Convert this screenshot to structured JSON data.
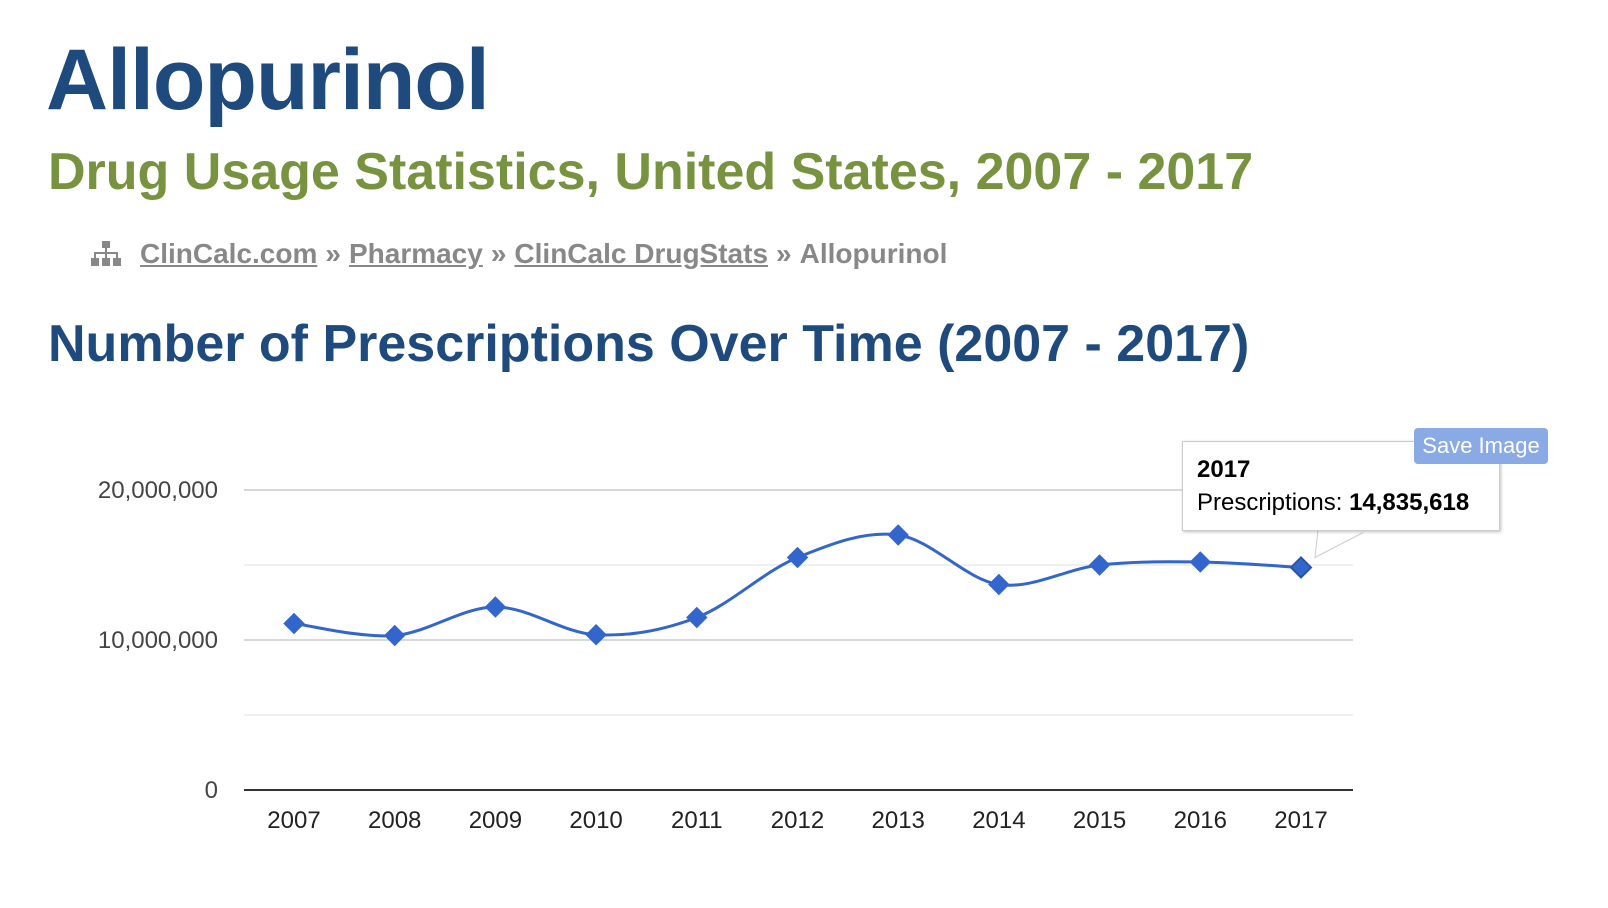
{
  "page": {
    "drug_title": "Allopurinol",
    "subtitle": "Drug Usage Statistics, United States, 2007 - 2017",
    "section_title": "Number of Prescriptions Over Time (2007 - 2017)"
  },
  "breadcrumb": {
    "items": [
      "ClinCalc.com",
      "Pharmacy",
      "ClinCalc DrugStats",
      "Allopurinol"
    ],
    "separator": "»"
  },
  "tooltip": {
    "year": "2017",
    "label": "Prescriptions:",
    "value": "14,835,618"
  },
  "toolbar": {
    "save_label": "Save Image"
  },
  "colors": {
    "title": "#1f4a7e",
    "subtitle": "#779340",
    "series": "#3366cc",
    "gridline": "#cccccc",
    "baseline": "#333333"
  },
  "chart_data": {
    "type": "line",
    "title": "Number of Prescriptions Over Time (2007 - 2017)",
    "xlabel": "",
    "ylabel": "",
    "categories": [
      "2007",
      "2008",
      "2009",
      "2010",
      "2011",
      "2012",
      "2013",
      "2014",
      "2015",
      "2016",
      "2017"
    ],
    "series": [
      {
        "name": "Prescriptions",
        "values": [
          11100000,
          10300000,
          12200000,
          10350000,
          11500000,
          15500000,
          17000000,
          13700000,
          15000000,
          15200000,
          14835618
        ]
      }
    ],
    "ylim": [
      0,
      20000000
    ],
    "yticks": [
      0,
      10000000,
      20000000
    ],
    "ytick_labels": [
      "0",
      "10,000,000",
      "20,000,000"
    ],
    "minor_gridlines": [
      5000000,
      15000000
    ],
    "marker": "diamond",
    "smooth": true,
    "grid": true,
    "legend": "none"
  }
}
